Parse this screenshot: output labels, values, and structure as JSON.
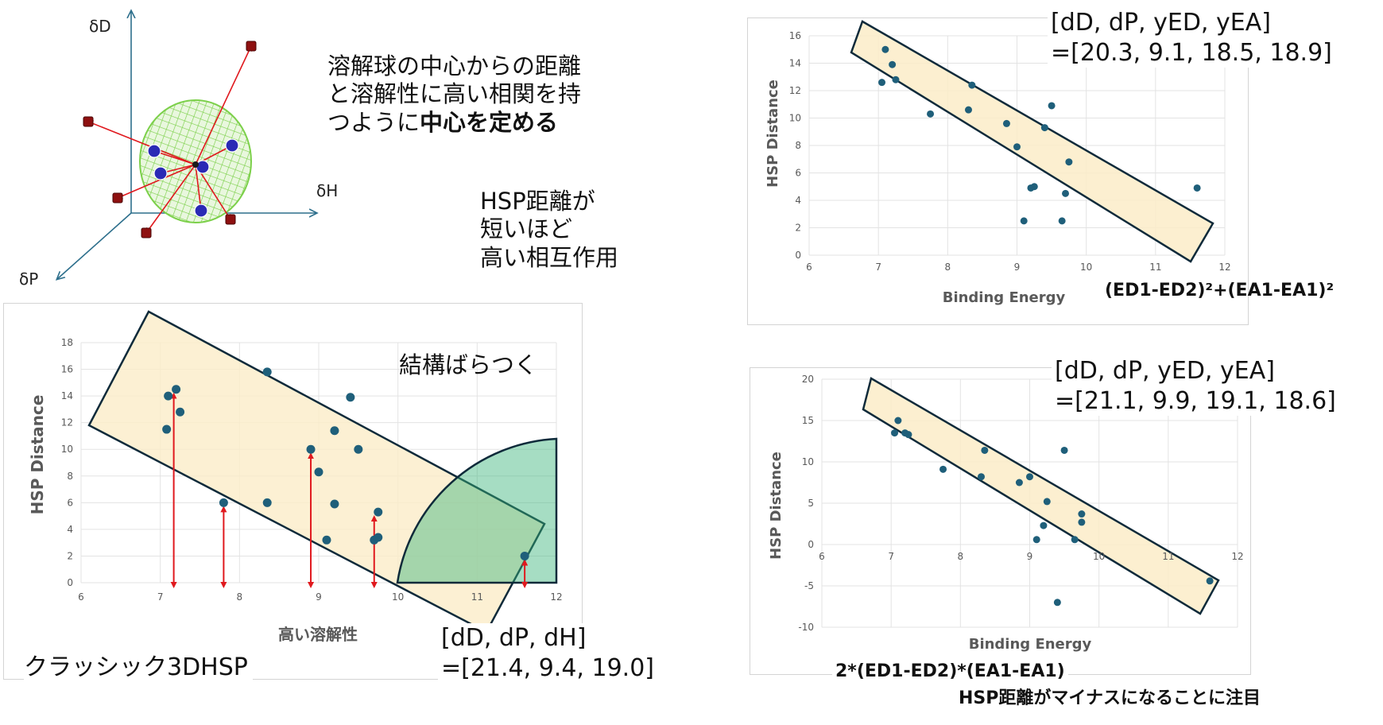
{
  "sphere_diagram": {
    "axis_d": "δD",
    "axis_h": "δH",
    "axis_p": "δP"
  },
  "notes": {
    "center_line1": "溶解球の中心からの距離",
    "center_line2": "と溶解性に高い相関を持",
    "center_line3_normal": "つように",
    "center_line3_bold": "中心を定める",
    "hsp_line1": "HSP距離が",
    "hsp_line2": "短いほど",
    "hsp_line3": "高い相互作用",
    "scatter_note": "結構ばらつく",
    "classic_label": "クラッシック3DHSP",
    "formula_top": "(ED1-ED2)²+(EA1-EA1)²",
    "formula_bottom": "2*(ED1-ED2)*(EA1-EA1)",
    "minus_note": "HSP距離がマイナスになることに注目"
  },
  "vectors": {
    "classic_head": "[dD, dP, dH]",
    "classic_vals": "=[21.4, 9.4, 19.0]",
    "top_head": "[dD, dP, yED, yEA]",
    "top_vals": "=[20.3, 9.1, 18.5, 18.9]",
    "bottom_head": "[dD, dP, yED, yEA]",
    "bottom_vals": "=[21.1, 9.9, 19.1, 18.6]"
  },
  "chart_data": [
    {
      "id": "classic",
      "type": "scatter",
      "xlabel": "高い溶解性",
      "ylabel": "HSP Distance",
      "xlim": [
        6,
        12
      ],
      "ylim": [
        0,
        18
      ],
      "xticks": [
        6,
        7,
        8,
        9,
        10,
        11,
        12
      ],
      "yticks": [
        0,
        2,
        4,
        6,
        8,
        10,
        12,
        14,
        16,
        18
      ],
      "grid": true,
      "point_color": "#1f5f7a",
      "points": [
        [
          7.1,
          14.0
        ],
        [
          7.2,
          14.5
        ],
        [
          7.25,
          12.8
        ],
        [
          7.08,
          11.5
        ],
        [
          7.8,
          6.0
        ],
        [
          8.35,
          15.8
        ],
        [
          8.35,
          6.0
        ],
        [
          8.9,
          10.0
        ],
        [
          9.0,
          8.3
        ],
        [
          9.2,
          11.4
        ],
        [
          9.2,
          5.9
        ],
        [
          9.1,
          3.2
        ],
        [
          9.4,
          13.9
        ],
        [
          9.5,
          10.0
        ],
        [
          9.7,
          3.2
        ],
        [
          9.75,
          3.4
        ],
        [
          9.75,
          5.3
        ],
        [
          11.6,
          2.0
        ]
      ],
      "arrows_x": [
        7.17,
        7.8,
        8.9,
        9.7,
        11.6
      ]
    },
    {
      "id": "top",
      "type": "scatter",
      "xlabel": "Binding Energy",
      "ylabel": "HSP Distance",
      "xlim": [
        6,
        12
      ],
      "ylim": [
        0,
        16
      ],
      "xticks": [
        6,
        7,
        8,
        9,
        10,
        11,
        12
      ],
      "yticks": [
        0,
        2,
        4,
        6,
        8,
        10,
        12,
        14,
        16
      ],
      "grid": true,
      "point_color": "#1f5f7a",
      "points": [
        [
          7.1,
          15.0
        ],
        [
          7.2,
          13.9
        ],
        [
          7.25,
          12.8
        ],
        [
          7.05,
          12.6
        ],
        [
          7.75,
          10.3
        ],
        [
          8.35,
          12.4
        ],
        [
          8.3,
          10.6
        ],
        [
          8.85,
          9.6
        ],
        [
          9.0,
          7.9
        ],
        [
          9.4,
          9.3
        ],
        [
          9.5,
          10.9
        ],
        [
          9.75,
          6.8
        ],
        [
          9.25,
          5.0
        ],
        [
          9.2,
          4.9
        ],
        [
          9.7,
          4.5
        ],
        [
          9.1,
          2.5
        ],
        [
          9.65,
          2.5
        ],
        [
          11.6,
          4.9
        ]
      ]
    },
    {
      "id": "bottom",
      "type": "scatter",
      "xlabel": "Binding Energy",
      "ylabel": "HSP Distance",
      "xlim": [
        6,
        12
      ],
      "ylim": [
        -10,
        20
      ],
      "xticks": [
        6,
        7,
        8,
        9,
        10,
        11,
        12
      ],
      "yticks": [
        -10,
        -5,
        0,
        5,
        10,
        15,
        20
      ],
      "grid": true,
      "point_color": "#1f5f7a",
      "points": [
        [
          7.1,
          15.0
        ],
        [
          7.05,
          13.5
        ],
        [
          7.2,
          13.5
        ],
        [
          7.25,
          13.3
        ],
        [
          7.75,
          9.1
        ],
        [
          8.35,
          11.4
        ],
        [
          8.3,
          8.2
        ],
        [
          8.85,
          7.5
        ],
        [
          9.0,
          8.2
        ],
        [
          9.25,
          5.2
        ],
        [
          9.5,
          11.4
        ],
        [
          9.2,
          2.3
        ],
        [
          9.75,
          3.7
        ],
        [
          9.75,
          2.7
        ],
        [
          9.1,
          0.6
        ],
        [
          9.65,
          0.6
        ],
        [
          9.4,
          -7.0
        ],
        [
          11.6,
          -4.4
        ]
      ]
    }
  ]
}
